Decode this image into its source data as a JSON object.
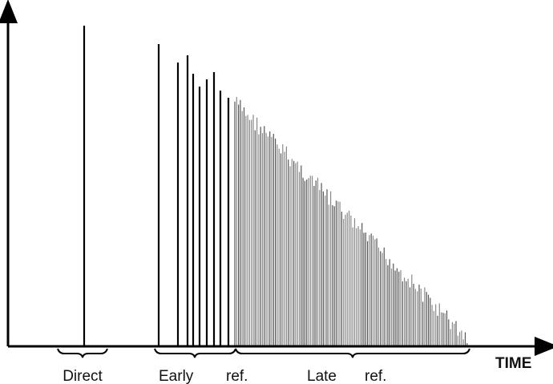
{
  "labels": {
    "direct": "Direct",
    "early": "Early",
    "early_ref": "ref.",
    "late": "Late",
    "late_ref": "ref.",
    "axis": "TIME"
  }
}
